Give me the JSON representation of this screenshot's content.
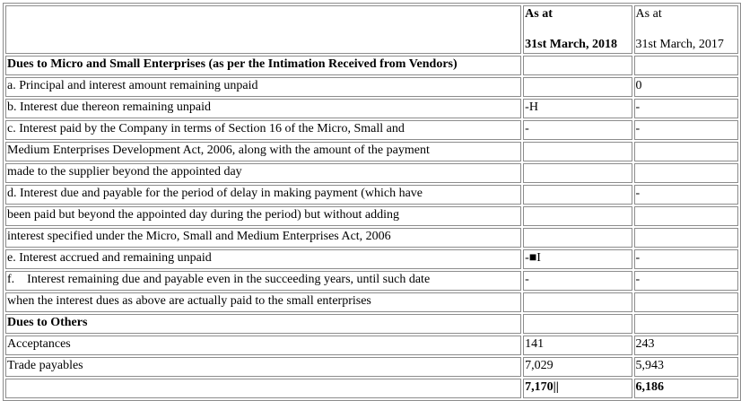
{
  "header": {
    "col2_line1": "As at",
    "col2_line2": "31st March, 2018",
    "col3_line1": "As at",
    "col3_line2": "31st March, 2017"
  },
  "rows": [
    {
      "label": "Dues to Micro and Small Enterprises (as per the Intimation Received from Vendors)",
      "v2018": "",
      "v2017": "",
      "bold": true
    },
    {
      "label": "a. Principal and interest amount remaining unpaid",
      "v2018": "",
      "v2017": "0"
    },
    {
      "label": "b. Interest due thereon remaining unpaid",
      "v2018": "-H",
      "v2017": "-"
    },
    {
      "label": "c. Interest paid by the Company in terms of Section 16 of the Micro, Small and",
      "v2018": "-",
      "v2017": "-"
    },
    {
      "label": "Medium Enterprises Development Act, 2006, along with the amount of the payment",
      "v2018": "",
      "v2017": ""
    },
    {
      "label": "made to the supplier beyond the appointed day",
      "v2018": "",
      "v2017": ""
    },
    {
      "label": "d. Interest due and payable for the period of delay in making payment (which have",
      "v2018": "",
      "v2017": "-"
    },
    {
      "label": "been paid but beyond the appointed day during the period) but without adding",
      "v2018": "",
      "v2017": ""
    },
    {
      "label": "interest specified under the Micro, Small and Medium Enterprises Act, 2006",
      "v2018": "",
      "v2017": ""
    },
    {
      "label": "e. Interest accrued and remaining unpaid",
      "v2018": "-■I",
      "v2017": "-"
    },
    {
      "label": "f.    Interest remaining due and payable even in the succeeding years, until such date",
      "v2018": "-",
      "v2017": "-"
    },
    {
      "label": "when the interest dues as above are actually paid to the small enterprises",
      "v2018": "",
      "v2017": ""
    },
    {
      "label": "Dues to Others",
      "v2018": "",
      "v2017": "",
      "bold": true
    },
    {
      "label": "Acceptances",
      "v2018": "141",
      "v2017": "243"
    },
    {
      "label": "Trade payables",
      "v2018": "7,029",
      "v2017": "5,943"
    },
    {
      "label": "",
      "v2018": "7,170||",
      "v2017": "6,186",
      "bold_values": true
    }
  ]
}
